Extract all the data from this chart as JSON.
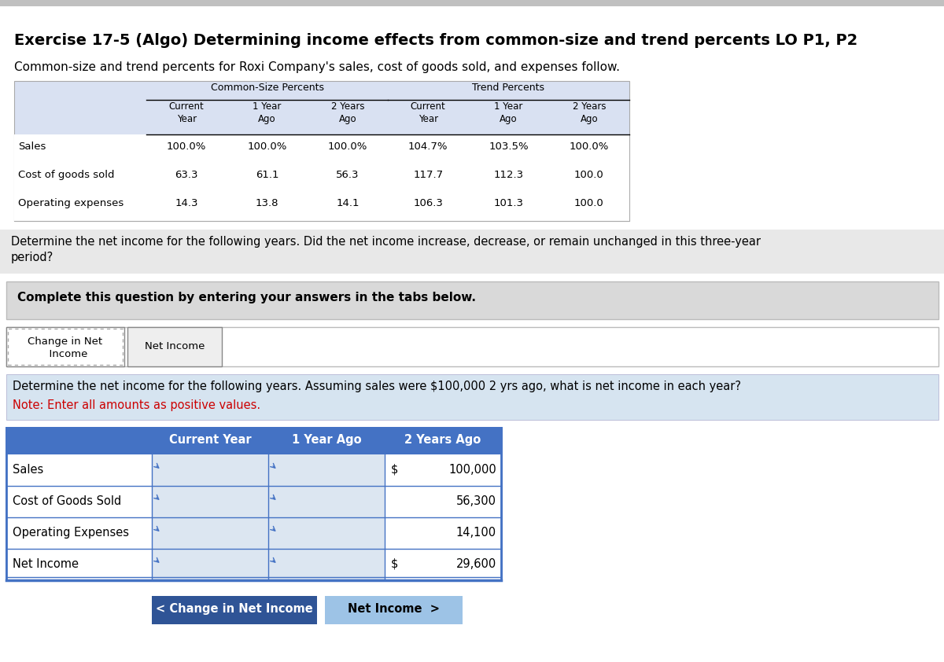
{
  "title": "Exercise 17-5 (Algo) Determining income effects from common-size and trend percents LO P1, P2",
  "subtitle": "Common-size and trend percents for Roxi Company's sales, cost of goods sold, and expenses follow.",
  "bg_color": "#ffffff",
  "top_table": {
    "group_headers": [
      "Common-Size Percents",
      "Trend Percents"
    ],
    "col_header_row1": [
      "Current",
      "1 Year",
      "2 Years",
      "Current",
      "1 Year",
      "2 Years"
    ],
    "col_header_row2": [
      "Year",
      "Ago",
      "Ago",
      "Year",
      "Ago",
      "Ago"
    ],
    "row_labels": [
      "Sales",
      "Cost of goods sold",
      "Operating expenses"
    ],
    "data": [
      [
        "100.0%",
        "100.0%",
        "100.0%",
        "104.7%",
        "103.5%",
        "100.0%"
      ],
      [
        "63.3",
        "61.1",
        "56.3",
        "117.7",
        "112.3",
        "100.0"
      ],
      [
        "14.3",
        "13.8",
        "14.1",
        "106.3",
        "101.3",
        "100.0"
      ]
    ],
    "header_bg": "#d9e1f2",
    "data_bg": "#ffffff"
  },
  "determine_text1": "Determine the net income for the following years. Did the net income increase, decrease, or remain unchanged in this three-year",
  "determine_text2": "period?",
  "determine_bg": "#e8e8e8",
  "complete_text": "Complete this question by entering your answers in the tabs below.",
  "complete_bg": "#d9d9d9",
  "tab1_label_line1": "Change in Net",
  "tab1_label_line2": "  Income",
  "tab2_label": "Net Income",
  "bottom_bg": "#d6e4f0",
  "bottom_instruction": "Determine the net income for the following years. Assuming sales were $100,000 2 yrs ago, what is net income in each year?",
  "bottom_note": "Note: Enter all amounts as positive values.",
  "bottom_table": {
    "col_headers": [
      "Current Year",
      "1 Year Ago",
      "2 Years Ago"
    ],
    "row_labels": [
      "Sales",
      "Cost of Goods Sold",
      "Operating Expenses",
      "Net Income"
    ],
    "col2_values": [
      "$ 100,000",
      "56,300",
      "14,100",
      "$ 29,600"
    ],
    "has_dollar_sign": [
      true,
      false,
      false,
      true
    ],
    "header_bg": "#4472c4",
    "header_fg": "#ffffff",
    "input_bg": "#dce6f1",
    "cell_bg": "#ffffff"
  },
  "btn1_text": "< Change in Net Income",
  "btn1_bg": "#2f5496",
  "btn1_fg": "#ffffff",
  "btn2_text": "Net Income  >",
  "btn2_bg": "#9dc3e6",
  "btn2_fg": "#000000"
}
